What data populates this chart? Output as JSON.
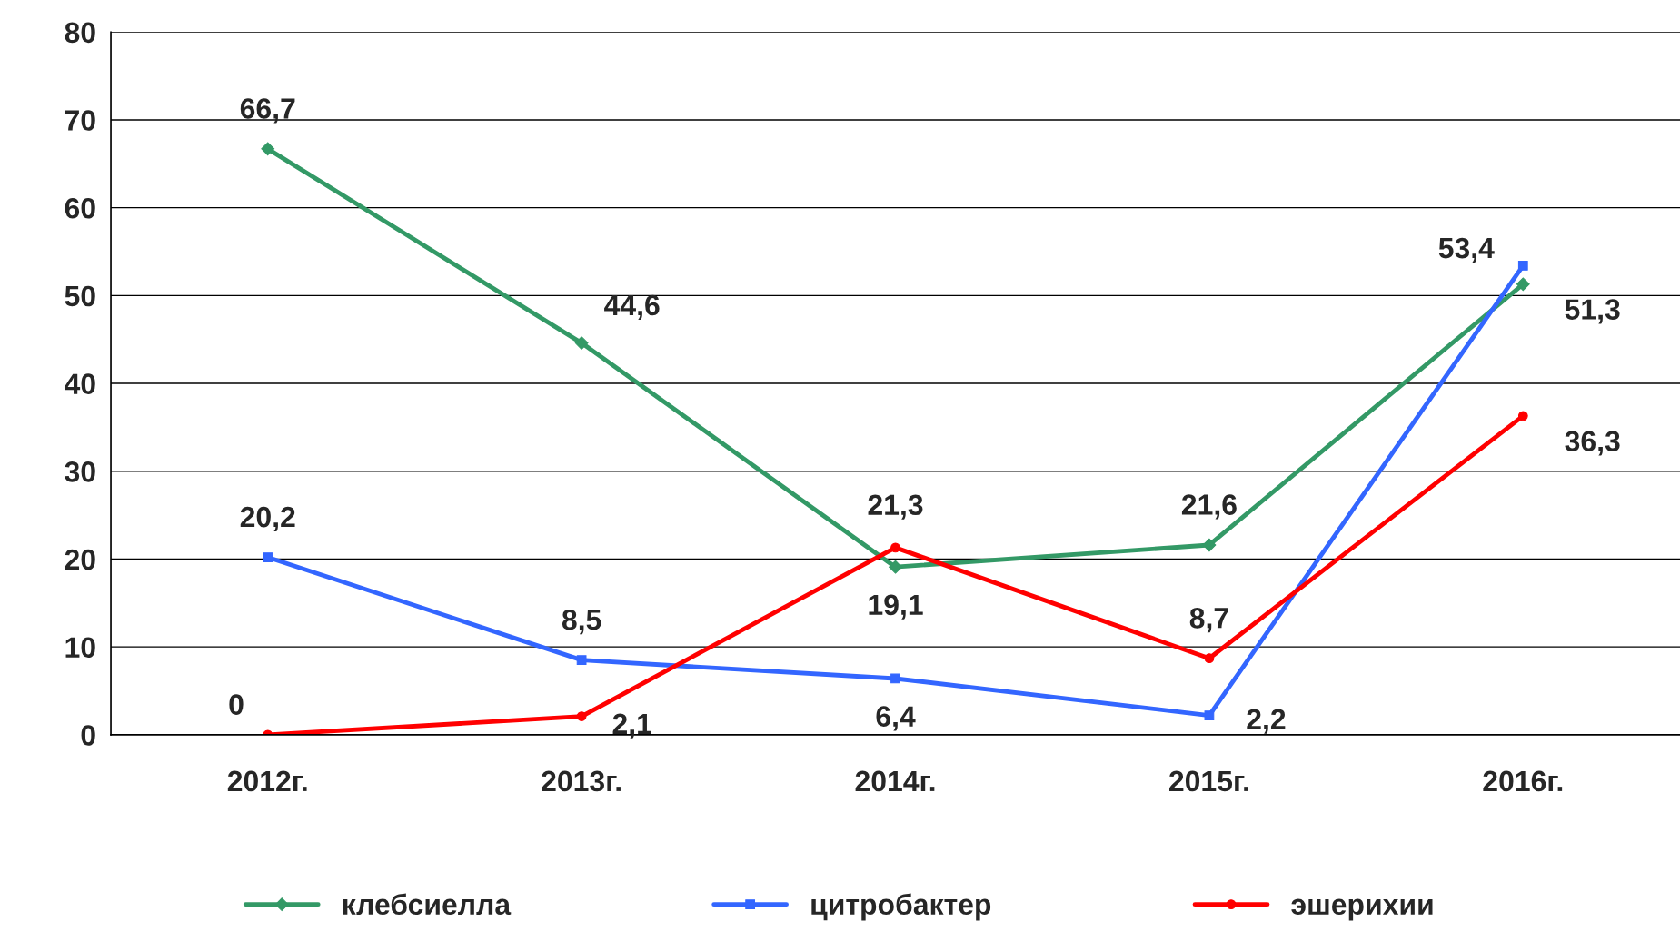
{
  "chart_data": {
    "type": "line",
    "categories": [
      "2012г.",
      "2013г.",
      "2014г.",
      "2015г.",
      "2016г."
    ],
    "series": [
      {
        "name": "клебсиелла",
        "color": "#339966",
        "marker": "diamond",
        "values": [
          66.7,
          44.6,
          19.1,
          21.6,
          51.3
        ],
        "value_labels": [
          "66,7",
          "44,6",
          "19,1",
          "21,6",
          "51,3"
        ]
      },
      {
        "name": "цитробактер",
        "color": "#3366ff",
        "marker": "square",
        "values": [
          20.2,
          8.5,
          6.4,
          2.2,
          53.4
        ],
        "value_labels": [
          "20,2",
          "8,5",
          "6,4",
          "2,2",
          "53,4"
        ]
      },
      {
        "name": "эшерихии",
        "color": "#ff0000",
        "marker": "circle",
        "values": [
          0,
          2.1,
          21.3,
          8.7,
          36.3
        ],
        "value_labels": [
          "0",
          "2,1",
          "21,3",
          "8,7",
          "36,3"
        ]
      }
    ],
    "ylim": [
      0,
      80
    ],
    "yticks": [
      0,
      10,
      20,
      30,
      40,
      50,
      60,
      70,
      80
    ],
    "grid": "y",
    "legend": "bottom",
    "line_style": "solid"
  }
}
